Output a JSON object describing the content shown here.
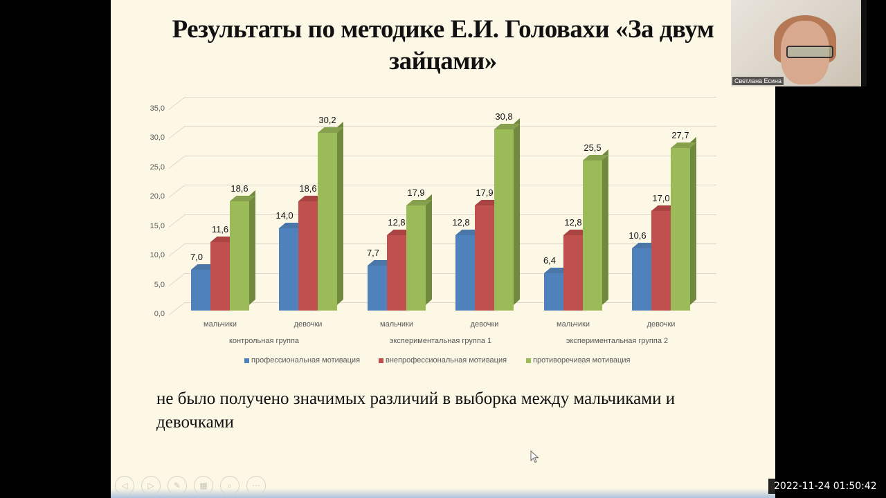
{
  "slide": {
    "title_line1": "Результаты по методике Е.И. Головахи «За двум",
    "title_line2": "зайцами»",
    "note": "не было получено значимых различий в выборка между мальчиками и девочками"
  },
  "chart_data": {
    "type": "bar",
    "title": "",
    "xlabel": "",
    "ylabel": "",
    "ylim": [
      0,
      35
    ],
    "yticks": [
      "0,0",
      "5,0",
      "10,0",
      "15,0",
      "20,0",
      "25,0",
      "30,0",
      "35,0"
    ],
    "grid": true,
    "legend_position": "bottom",
    "categories": [
      "мальчики",
      "девочки",
      "мальчики",
      "девочки",
      "мальчики",
      "девочки"
    ],
    "groups": [
      {
        "label": "контрольная группа",
        "categories": [
          "мальчики",
          "девочки"
        ]
      },
      {
        "label": "экспериментальная группа 1",
        "categories": [
          "мальчики",
          "девочки"
        ]
      },
      {
        "label": "экспериментальная группа 2",
        "categories": [
          "мальчики",
          "девочки"
        ]
      }
    ],
    "series": [
      {
        "name": "профессиональная мотивация",
        "color": "#4f81bd",
        "values": [
          7.0,
          14.0,
          7.7,
          12.8,
          6.4,
          10.6
        ],
        "labels": [
          "7,0",
          "14,0",
          "7,7",
          "12,8",
          "6,4",
          "10,6"
        ]
      },
      {
        "name": "внепрофессиональная мотивация",
        "color": "#c0504d",
        "values": [
          11.6,
          18.6,
          12.8,
          17.9,
          12.8,
          17.0
        ],
        "labels": [
          "11,6",
          "18,6",
          "12,8",
          "17,9",
          "12,8",
          "17,0"
        ]
      },
      {
        "name": "противоречивая мотивация",
        "color": "#9bbb59",
        "values": [
          18.6,
          30.2,
          17.9,
          30.8,
          25.5,
          27.7
        ],
        "labels": [
          "18,6",
          "30,2",
          "17,9",
          "30,8",
          "25,5",
          "27,7"
        ]
      }
    ]
  },
  "video": {
    "participant_name": "Светлана Есина"
  },
  "navigation": {
    "buttons": [
      {
        "name": "previous-slide",
        "glyph": "◁"
      },
      {
        "name": "next-slide",
        "glyph": "▷"
      },
      {
        "name": "pen",
        "glyph": "✎"
      },
      {
        "name": "slides-overview",
        "glyph": "▦"
      },
      {
        "name": "zoom",
        "glyph": "⌕"
      },
      {
        "name": "more-options",
        "glyph": "⋯"
      }
    ]
  },
  "recording": {
    "timestamp": "2022-11-24 01:50:42"
  }
}
